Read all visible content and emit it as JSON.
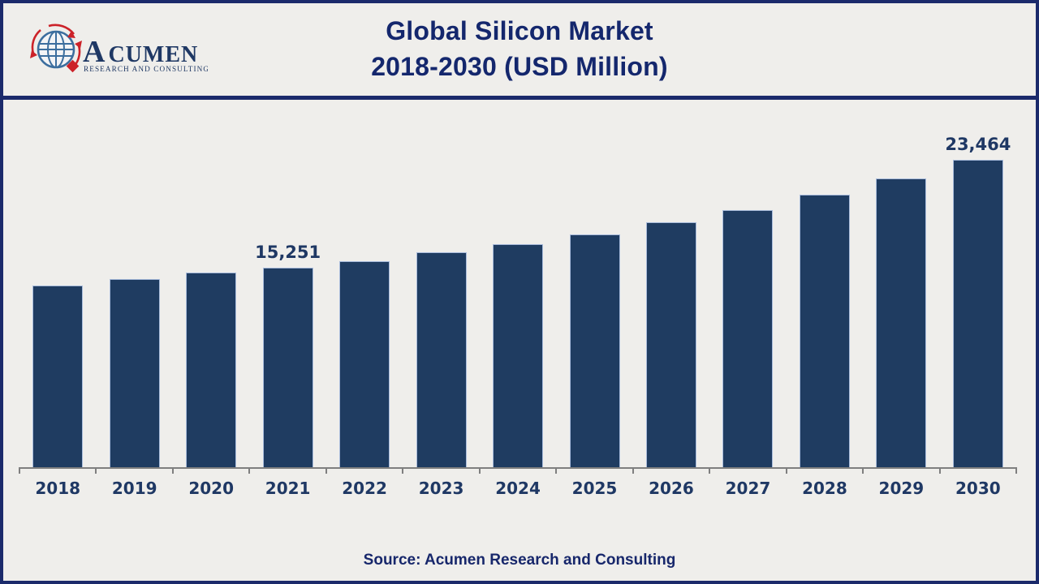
{
  "header": {
    "title_line1": "Global Silicon Market",
    "title_line2": "2018-2030 (USD Million)",
    "title_color": "#14276d"
  },
  "logo": {
    "brand_initial": "A",
    "brand_rest": "CUMEN",
    "tagline": "RESEARCH AND CONSULTING",
    "globe_color": "#3c6e9e",
    "swirl_color": "#cc2229",
    "text_color": "#1f3864"
  },
  "chart_data": {
    "type": "bar",
    "title": "Global Silicon Market 2018-2030 (USD Million)",
    "xlabel": "",
    "ylabel": "",
    "categories": [
      "2018",
      "2019",
      "2020",
      "2021",
      "2022",
      "2023",
      "2024",
      "2025",
      "2026",
      "2027",
      "2028",
      "2029",
      "2030"
    ],
    "values": [
      13900,
      14370,
      14880,
      15251,
      15710,
      16420,
      17040,
      17760,
      18690,
      19650,
      20780,
      22030,
      23464
    ],
    "labeled_points": [
      {
        "category": "2021",
        "label": "15,251"
      },
      {
        "category": "2030",
        "label": "23,464"
      }
    ],
    "ylim": [
      0,
      24000
    ],
    "gridlines": false,
    "legend_position": "none",
    "bar_color": "#1f3c61",
    "bar_border_color": "#a9bcdc",
    "axis_line_color": "#7f7f7f",
    "label_color": "#1f3864"
  },
  "footer": {
    "source": "Source: Acumen Research and Consulting"
  }
}
